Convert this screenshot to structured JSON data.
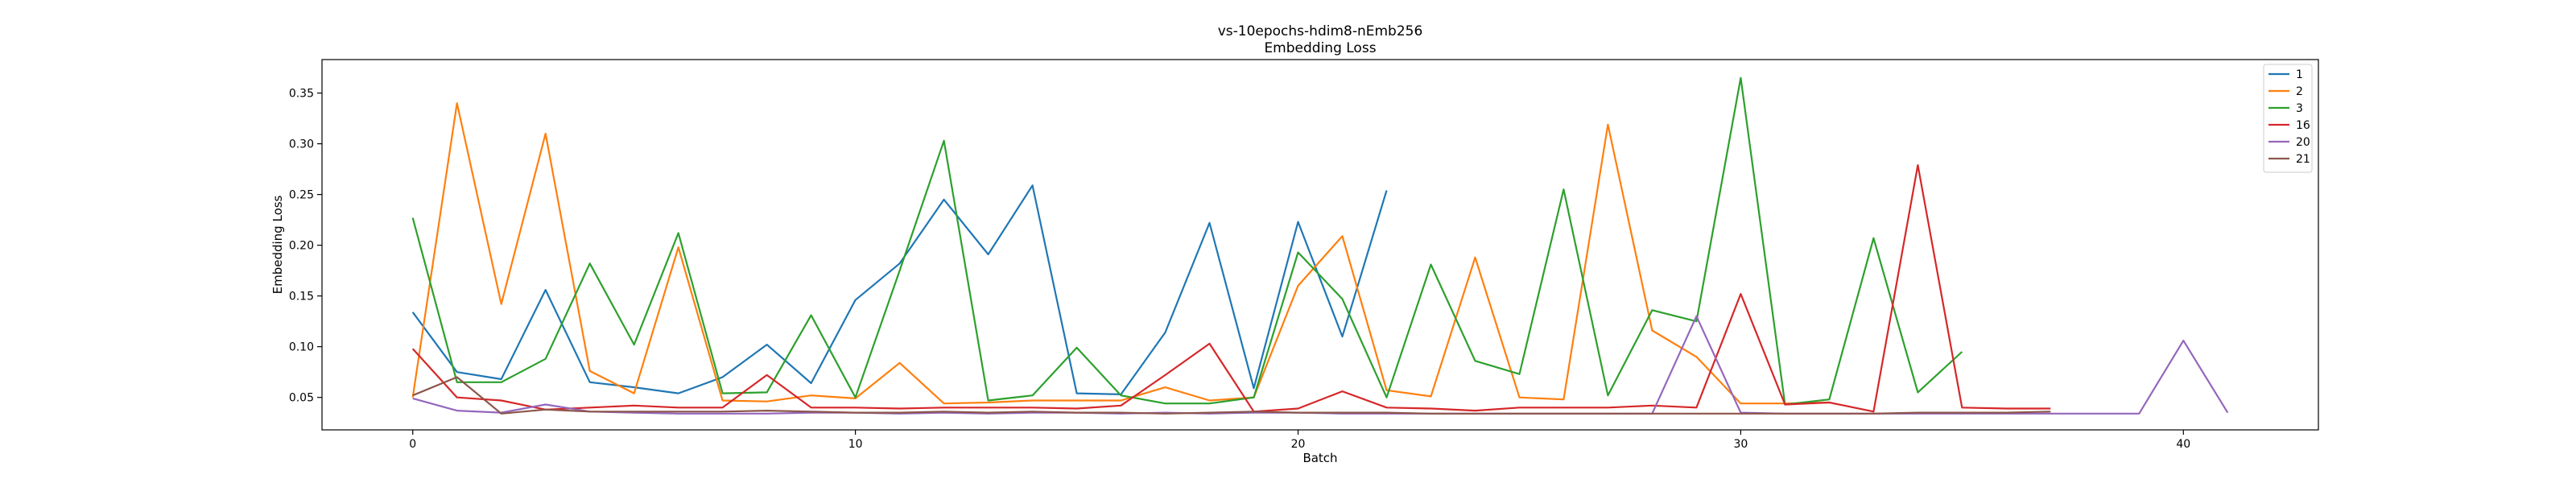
{
  "chart_data": {
    "type": "line",
    "title": "vs-10epochs-hdim8-nEmb256",
    "subtitle": "Embedding Loss",
    "xlabel": "Batch",
    "ylabel": "Embedding Loss",
    "xlim": [
      -2.05,
      43.05
    ],
    "ylim": [
      0.018,
      0.383
    ],
    "xticks": [
      0,
      10,
      20,
      30,
      40
    ],
    "yticks": [
      0.05,
      0.1,
      0.15,
      0.2,
      0.25,
      0.3,
      0.35
    ],
    "ytick_labels": [
      "0.05",
      "0.10",
      "0.15",
      "0.20",
      "0.25",
      "0.30",
      "0.35"
    ],
    "grid": false,
    "legend_position": "top-right",
    "series": [
      {
        "name": "1",
        "color": "#1f77b4",
        "x": [
          0,
          1,
          2,
          3,
          4,
          5,
          6,
          7,
          8,
          9,
          10,
          11,
          12,
          13,
          14,
          15,
          16,
          17,
          18,
          19,
          20,
          21,
          22
        ],
        "y": [
          0.134,
          0.075,
          0.068,
          0.156,
          0.065,
          0.06,
          0.054,
          0.07,
          0.102,
          0.064,
          0.146,
          0.182,
          0.245,
          0.191,
          0.259,
          0.054,
          0.053,
          0.114,
          0.222,
          0.059,
          0.223,
          0.11,
          0.254
        ]
      },
      {
        "name": "2",
        "color": "#ff7f0e",
        "x": [
          0,
          1,
          2,
          3,
          4,
          5,
          6,
          7,
          8,
          9,
          10,
          11,
          12,
          13,
          14,
          15,
          16,
          17,
          18,
          19,
          20,
          21,
          22,
          23,
          24,
          25,
          26,
          27,
          28,
          29,
          30,
          31,
          32
        ],
        "y": [
          0.05,
          0.34,
          0.142,
          0.31,
          0.076,
          0.054,
          0.198,
          0.047,
          0.046,
          0.052,
          0.049,
          0.084,
          0.044,
          0.045,
          0.047,
          0.047,
          0.047,
          0.06,
          0.047,
          0.05,
          0.16,
          0.209,
          0.057,
          0.051,
          0.188,
          0.05,
          0.048,
          0.319,
          0.116,
          0.09,
          0.044,
          0.044,
          0.045
        ]
      },
      {
        "name": "3",
        "color": "#2ca02c",
        "x": [
          0,
          1,
          2,
          3,
          4,
          5,
          6,
          7,
          8,
          9,
          10,
          11,
          12,
          13,
          14,
          15,
          16,
          17,
          18,
          19,
          20,
          21,
          22,
          23,
          24,
          25,
          26,
          27,
          28,
          29,
          30,
          31,
          32,
          33,
          34,
          35
        ],
        "y": [
          0.227,
          0.065,
          0.065,
          0.088,
          0.182,
          0.102,
          0.212,
          0.054,
          0.055,
          0.131,
          0.05,
          0.175,
          0.303,
          0.047,
          0.052,
          0.099,
          0.052,
          0.044,
          0.044,
          0.05,
          0.193,
          0.147,
          0.05,
          0.181,
          0.086,
          0.073,
          0.255,
          0.052,
          0.136,
          0.125,
          0.365,
          0.043,
          0.048,
          0.207,
          0.055,
          0.095
        ]
      },
      {
        "name": "16",
        "color": "#d62728",
        "x": [
          0,
          1,
          2,
          3,
          4,
          5,
          6,
          7,
          8,
          9,
          10,
          11,
          12,
          13,
          14,
          15,
          16,
          17,
          18,
          19,
          20,
          21,
          22,
          23,
          24,
          25,
          26,
          27,
          28,
          29,
          30,
          31,
          32,
          33,
          34,
          35,
          36,
          37
        ],
        "y": [
          0.098,
          0.05,
          0.047,
          0.038,
          0.04,
          0.042,
          0.04,
          0.04,
          0.072,
          0.04,
          0.04,
          0.039,
          0.04,
          0.04,
          0.04,
          0.039,
          0.042,
          0.072,
          0.103,
          0.036,
          0.039,
          0.056,
          0.04,
          0.039,
          0.037,
          0.04,
          0.04,
          0.04,
          0.042,
          0.04,
          0.152,
          0.043,
          0.045,
          0.036,
          0.279,
          0.04,
          0.039,
          0.039
        ]
      },
      {
        "name": "20",
        "color": "#9467bd",
        "x": [
          0,
          1,
          2,
          3,
          4,
          5,
          6,
          7,
          8,
          9,
          10,
          11,
          12,
          13,
          14,
          15,
          16,
          17,
          18,
          19,
          20,
          21,
          22,
          23,
          24,
          25,
          26,
          27,
          28,
          29,
          30,
          31,
          32,
          33,
          34,
          35,
          36,
          37,
          38,
          39,
          40,
          41
        ],
        "y": [
          0.049,
          0.037,
          0.035,
          0.043,
          0.036,
          0.035,
          0.034,
          0.034,
          0.034,
          0.035,
          0.035,
          0.034,
          0.035,
          0.034,
          0.035,
          0.035,
          0.034,
          0.035,
          0.034,
          0.035,
          0.035,
          0.034,
          0.034,
          0.034,
          0.034,
          0.034,
          0.034,
          0.034,
          0.034,
          0.13,
          0.035,
          0.034,
          0.034,
          0.034,
          0.034,
          0.034,
          0.034,
          0.034,
          0.034,
          0.034,
          0.106,
          0.035
        ]
      },
      {
        "name": "21",
        "color": "#8c564b",
        "x": [
          0,
          1,
          2,
          3,
          4,
          5,
          6,
          7,
          8,
          9,
          10,
          11,
          12,
          13,
          14,
          15,
          16,
          17,
          18,
          19,
          20,
          21,
          22,
          23,
          24,
          25,
          26,
          27,
          28,
          29,
          30,
          31,
          32,
          33,
          34,
          35,
          36,
          37
        ],
        "y": [
          0.052,
          0.07,
          0.034,
          0.038,
          0.036,
          0.036,
          0.036,
          0.036,
          0.037,
          0.036,
          0.035,
          0.035,
          0.036,
          0.035,
          0.036,
          0.035,
          0.035,
          0.034,
          0.035,
          0.036,
          0.035,
          0.035,
          0.035,
          0.034,
          0.034,
          0.034,
          0.034,
          0.034,
          0.034,
          0.034,
          0.034,
          0.034,
          0.034,
          0.034,
          0.035,
          0.035,
          0.035,
          0.036
        ]
      }
    ]
  }
}
